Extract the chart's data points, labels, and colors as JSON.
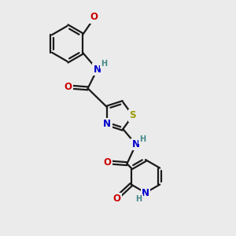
{
  "bg_color": "#ebebeb",
  "bond_color": "#1a1a1a",
  "bond_width": 1.6,
  "atom_colors": {
    "N": "#0000cc",
    "O": "#cc0000",
    "S": "#999900",
    "H": "#448888",
    "C": "#1a1a1a"
  },
  "font_size_atom": 8.5,
  "font_size_h": 7.0,
  "figsize": [
    3.0,
    3.0
  ],
  "dpi": 100,
  "xlim": [
    0,
    10
  ],
  "ylim": [
    0,
    10
  ]
}
